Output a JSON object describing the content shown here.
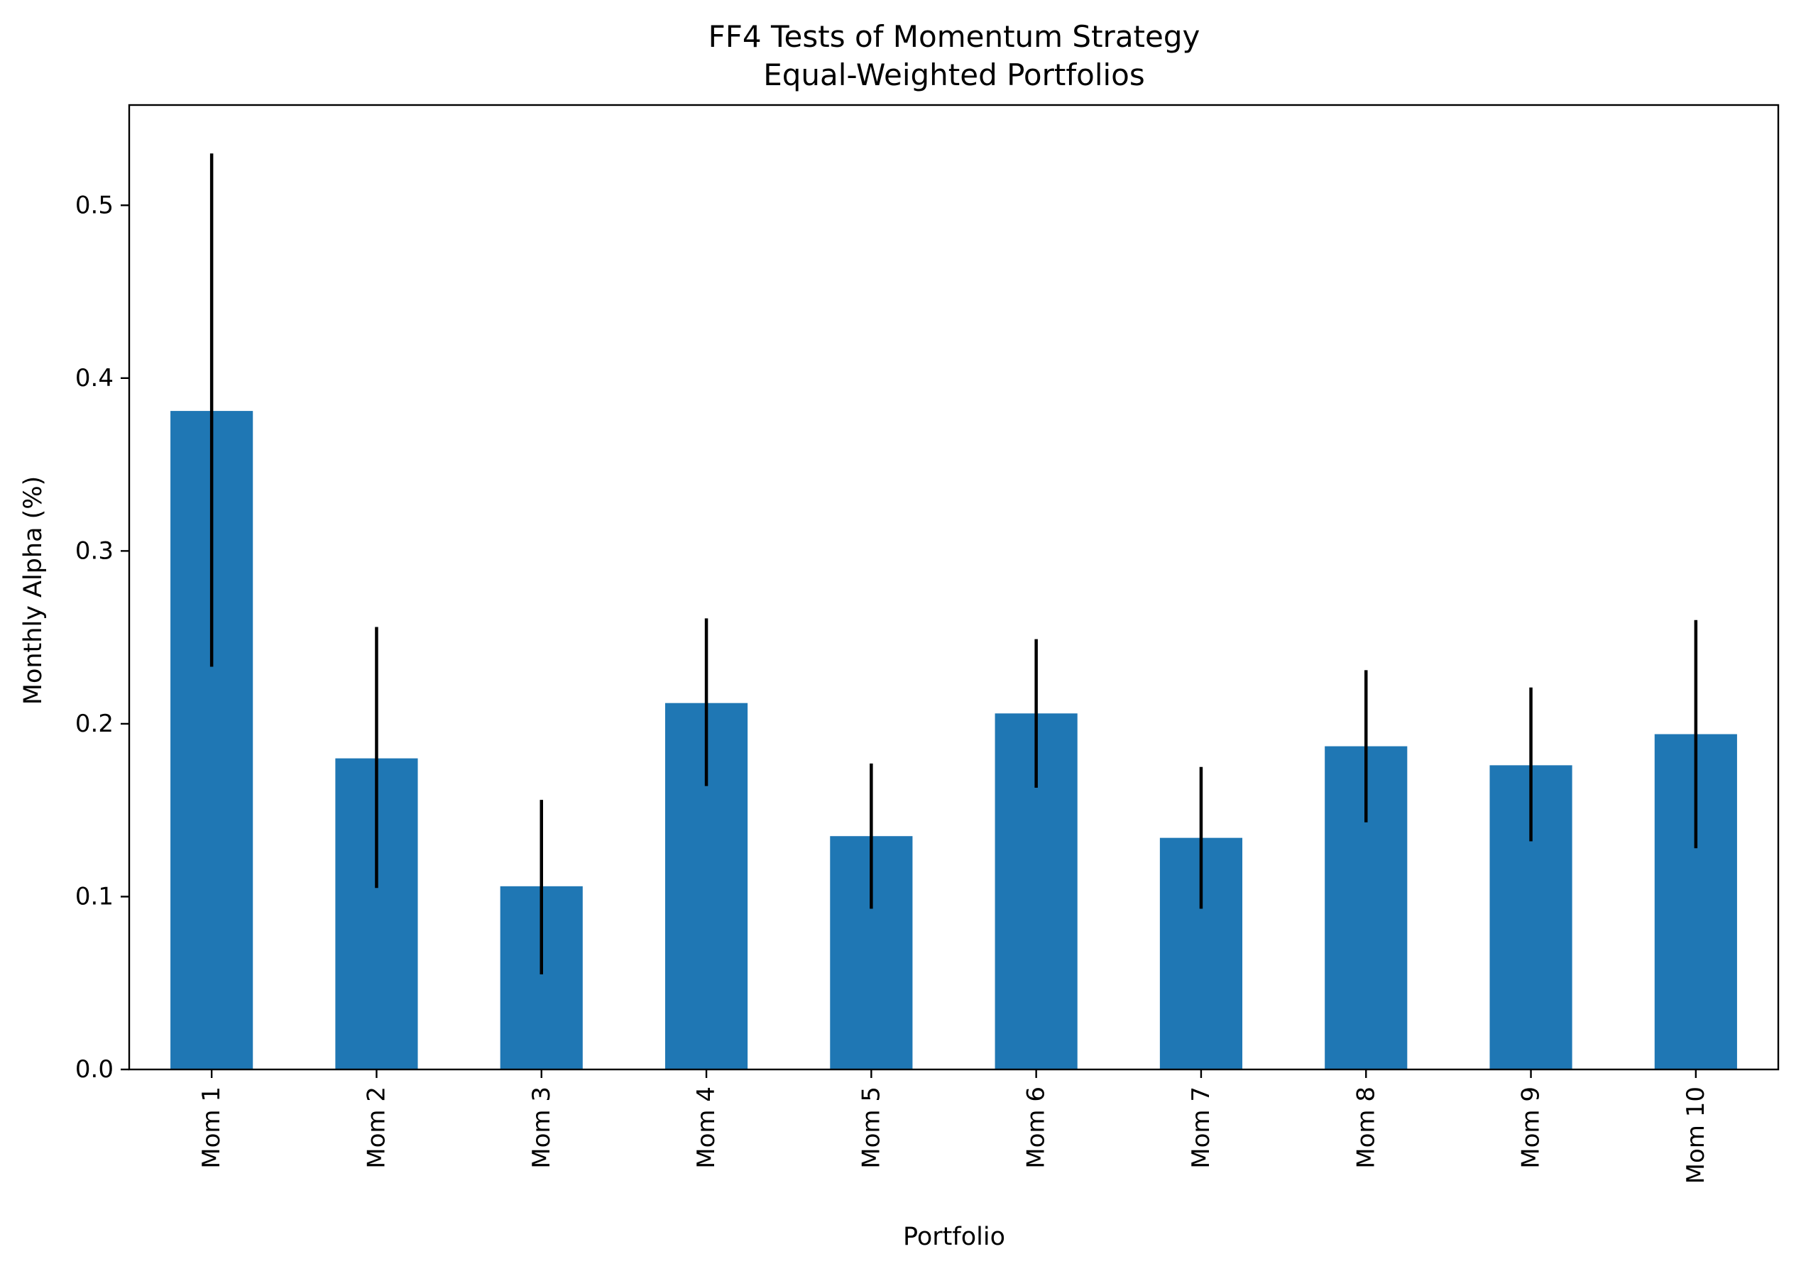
{
  "chart_data": {
    "type": "bar",
    "title": "FF4 Tests of Momentum Strategy",
    "subtitle": "Equal-Weighted Portfolios",
    "xlabel": "Portfolio",
    "ylabel": "Monthly Alpha (%)",
    "categories": [
      "Mom 1",
      "Mom 2",
      "Mom 3",
      "Mom 4",
      "Mom 5",
      "Mom 6",
      "Mom 7",
      "Mom 8",
      "Mom 9",
      "Mom 10"
    ],
    "values": [
      0.381,
      0.18,
      0.106,
      0.212,
      0.135,
      0.206,
      0.134,
      0.187,
      0.176,
      0.194
    ],
    "error_low": [
      0.233,
      0.105,
      0.055,
      0.164,
      0.093,
      0.163,
      0.093,
      0.143,
      0.132,
      0.128
    ],
    "error_high": [
      0.53,
      0.256,
      0.156,
      0.261,
      0.177,
      0.249,
      0.175,
      0.231,
      0.221,
      0.26
    ],
    "ylim": [
      0,
      0.558
    ],
    "yticks": [
      0.0,
      0.1,
      0.2,
      0.3,
      0.4,
      0.5
    ],
    "ytick_labels": [
      "0.0",
      "0.1",
      "0.2",
      "0.3",
      "0.4",
      "0.5"
    ],
    "grid": false,
    "legend": "none",
    "colors": {
      "bar": "#1f77b4",
      "error": "#000000",
      "axis": "#000000"
    }
  }
}
